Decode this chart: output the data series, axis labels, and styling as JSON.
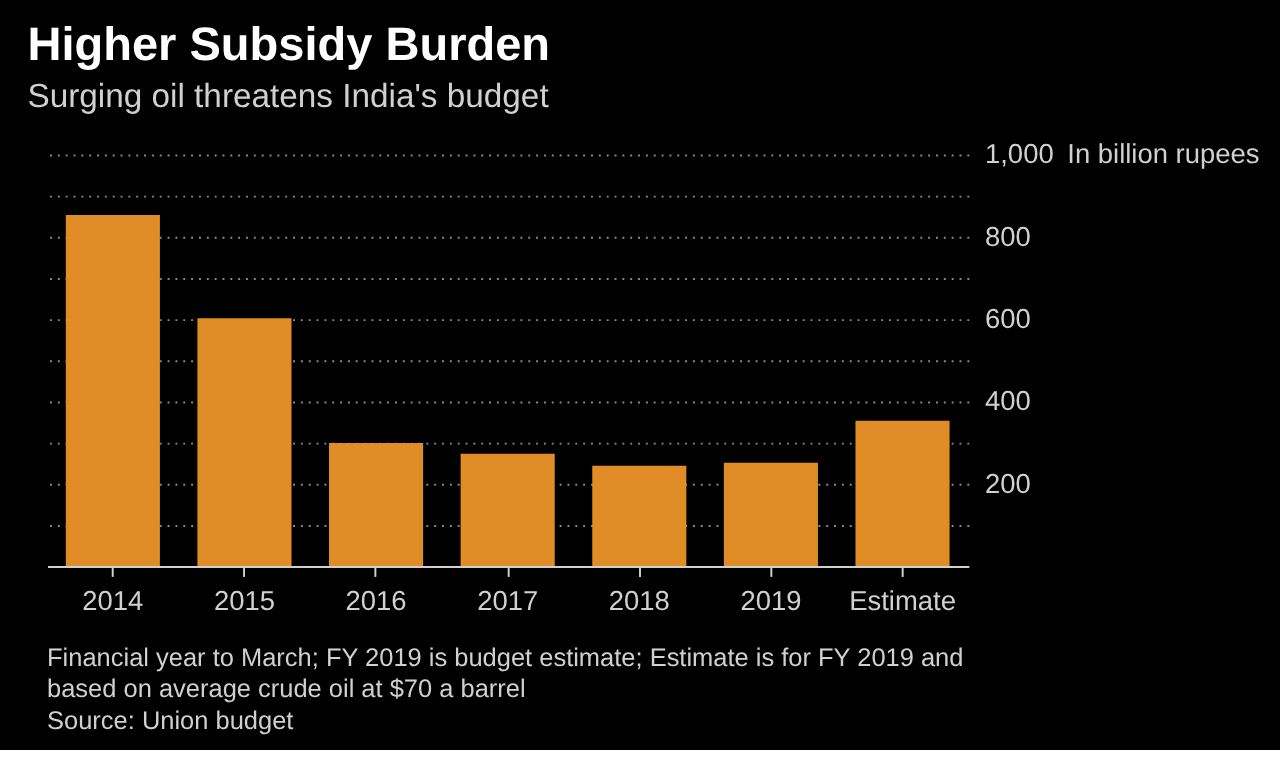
{
  "chart_data": {
    "type": "bar",
    "title": "Higher Subsidy Burden",
    "subtitle": "Surging oil threatens India's budget",
    "categories": [
      "2014",
      "2015",
      "2016",
      "2017",
      "2018",
      "2019",
      "Estimate"
    ],
    "values": [
      853,
      602,
      299,
      273,
      244,
      251,
      353
    ],
    "color": "#e08d27",
    "ylim": [
      0,
      1000
    ],
    "yticks": [
      {
        "value": 100,
        "label": null
      },
      200,
      {
        "value": 300,
        "label": null
      },
      400,
      {
        "value": 500,
        "label": null
      },
      600,
      {
        "value": 700,
        "label": null
      },
      800,
      {
        "value": 900,
        "label": null
      },
      {
        "value": 1000,
        "label": "1,000"
      }
    ],
    "ylabel": "In billion rupees",
    "grid": "y",
    "annotations": [
      "Financial year to March; FY 2019 is budget estimate; Estimate is for FY 2019 and based on average crude oil at $70 a barrel",
      "Source: Union budget"
    ]
  }
}
